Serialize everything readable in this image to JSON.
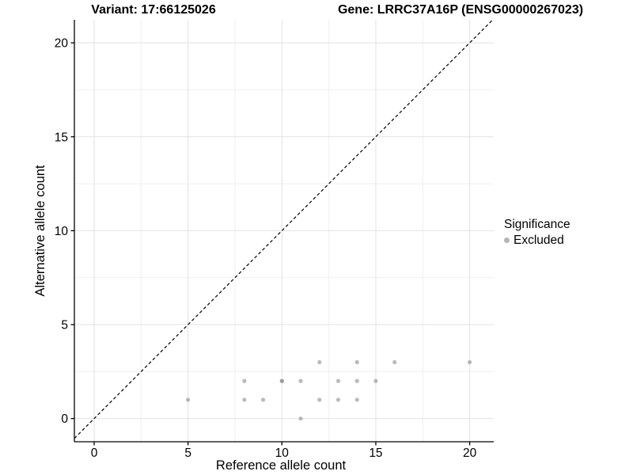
{
  "titles": {
    "variant": "Variant: 17:66125026",
    "gene": "Gene: LRRC37A16P (ENSG00000267023)"
  },
  "legend": {
    "title": "Significance",
    "items": [
      {
        "label": "Excluded",
        "color": "#b5b5b5"
      }
    ],
    "position": "right"
  },
  "chart_data": {
    "type": "scatter",
    "title": "",
    "xlabel": "Reference allele count",
    "ylabel": "Alternative allele count",
    "xlim": [
      -1.05,
      21.05
    ],
    "ylim": [
      -1.05,
      21.05
    ],
    "x_ticks": [
      0,
      5,
      10,
      15,
      20
    ],
    "y_ticks": [
      0,
      5,
      10,
      15,
      20
    ],
    "minor_grid_step": 2.5,
    "grid": true,
    "identity_line": {
      "slope": 1,
      "intercept": 0,
      "style": "dashed",
      "color": "#000000"
    },
    "series": [
      {
        "name": "Excluded",
        "color": "#8c8c8c",
        "opacity": 0.6,
        "points": [
          [
            5,
            1
          ],
          [
            8,
            1
          ],
          [
            8,
            2
          ],
          [
            9,
            1
          ],
          [
            10,
            2
          ],
          [
            10,
            2
          ],
          [
            11,
            0
          ],
          [
            11,
            2
          ],
          [
            12,
            1
          ],
          [
            12,
            3
          ],
          [
            13,
            1
          ],
          [
            13,
            2
          ],
          [
            14,
            1
          ],
          [
            14,
            2
          ],
          [
            14,
            3
          ],
          [
            15,
            2
          ],
          [
            16,
            3
          ],
          [
            20,
            3
          ]
        ]
      }
    ],
    "legend_position": "right"
  },
  "colors": {
    "axis": "#000000",
    "tick_label": "#000000",
    "grid_major": "#e2e2e2",
    "grid_minor": "#efefef",
    "panel_background": "#ffffff"
  }
}
